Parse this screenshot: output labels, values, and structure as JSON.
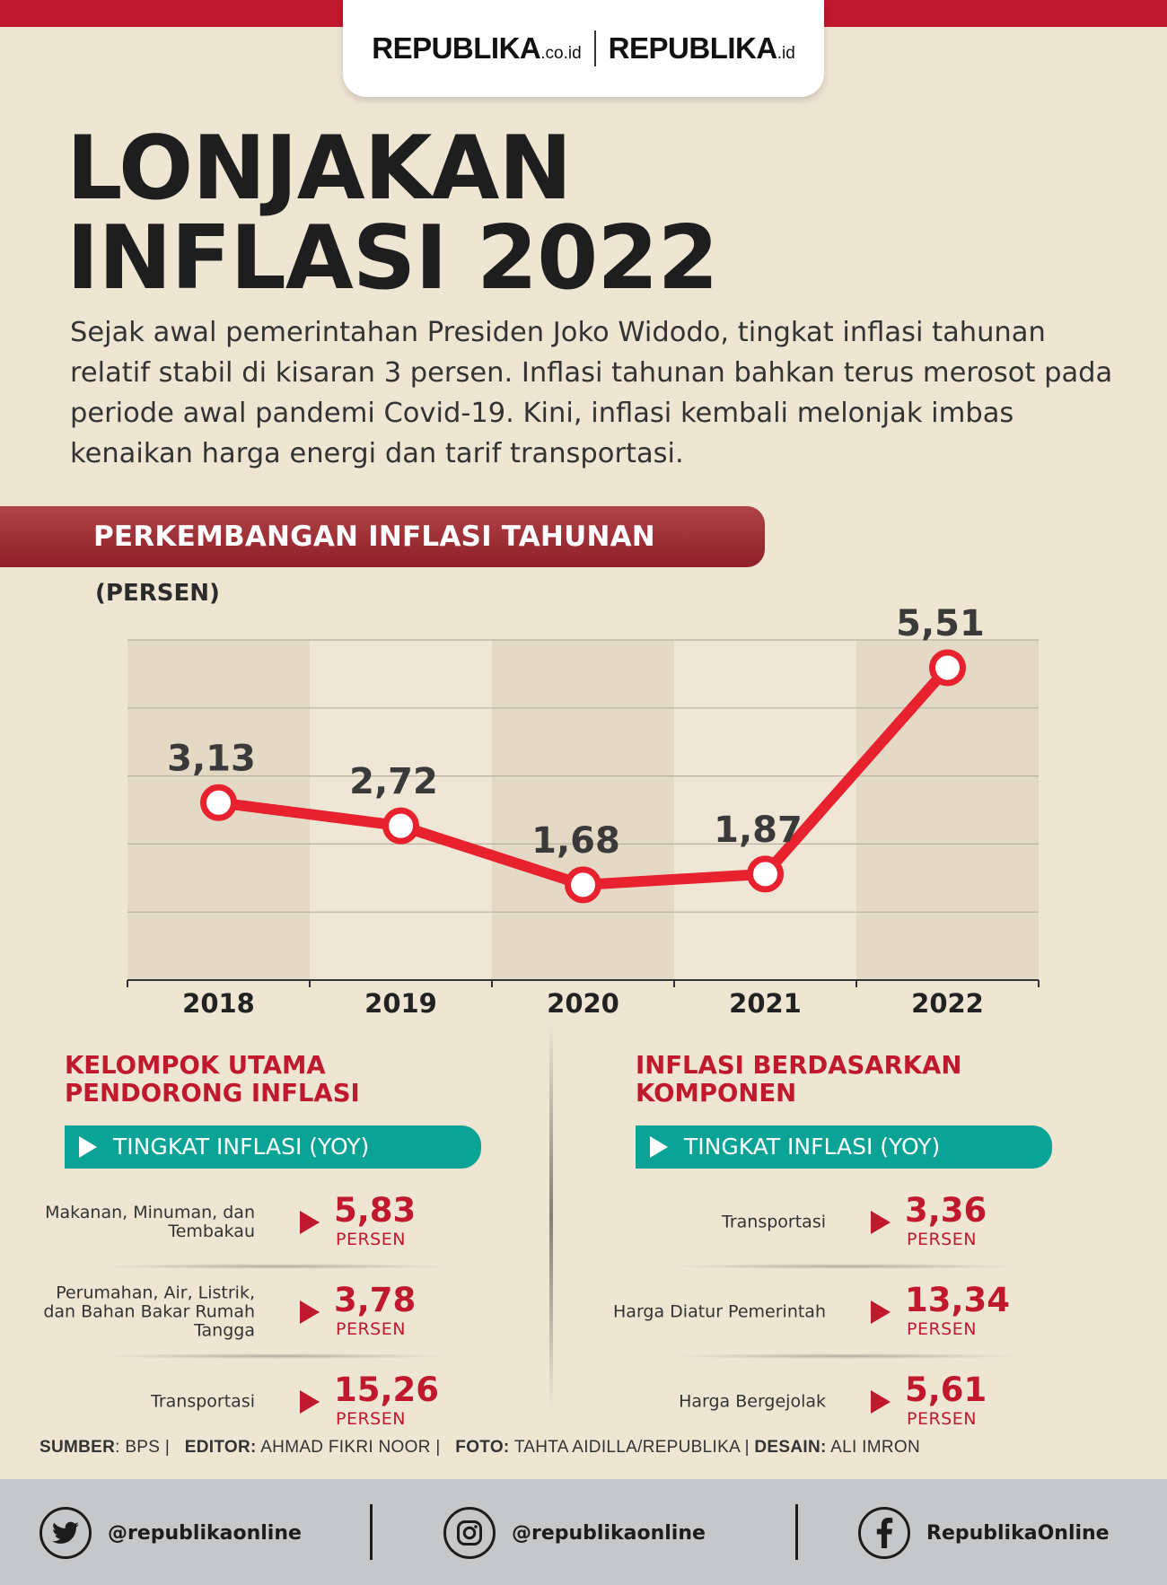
{
  "brand": {
    "logo1": "REPUBLIKA",
    "logo1_suffix": ".co.id",
    "logo2": "REPUBLIKA",
    "logo2_suffix": ".id",
    "accent": "#c0192d",
    "teal": "#0ba396",
    "background": "#efe5d3"
  },
  "title_line1": "LONJAKAN",
  "title_line2": "INFLASI 2022",
  "intro": "Sejak awal pemerintahan Presiden Joko Widodo, tingkat inflasi tahunan relatif stabil di kisaran 3 persen. Inflasi tahunan bahkan terus merosot pada periode awal pandemi Covid-19. Kini, inflasi kembali melonjak imbas kenaikan harga energi dan tarif transportasi.",
  "chart_data": {
    "type": "line",
    "title": "PERKEMBANGAN INFLASI TAHUNAN",
    "ylabel": "(PERSEN)",
    "categories": [
      "2018",
      "2019",
      "2020",
      "2021",
      "2022"
    ],
    "values": [
      3.13,
      2.72,
      1.68,
      1.87,
      5.51
    ],
    "value_labels": [
      "3,13",
      "2,72",
      "1,68",
      "1,87",
      "5,51"
    ],
    "ylim": [
      0,
      6
    ],
    "grid": true,
    "line_color": "#e8212f"
  },
  "left_panel": {
    "heading_line1": "KELOMPOK UTAMA",
    "heading_line2": "PENDORONG INFLASI",
    "pill": "TINGKAT INFLASI (YOY)",
    "rows": [
      {
        "label": "Makanan, Minuman, dan Tembakau",
        "value": "5,83",
        "unit": "PERSEN"
      },
      {
        "label": "Perumahan, Air, Listrik, dan Bahan Bakar Rumah Tangga",
        "value": "3,78",
        "unit": "PERSEN"
      },
      {
        "label": "Transportasi",
        "value": "15,26",
        "unit": "PERSEN"
      }
    ]
  },
  "right_panel": {
    "heading_line1": "INFLASI BERDASARKAN",
    "heading_line2": "KOMPONEN",
    "pill": "TINGKAT INFLASI (YOY)",
    "rows": [
      {
        "label": "Transportasi",
        "value": "3,36",
        "unit": "PERSEN"
      },
      {
        "label": "Harga Diatur Pemerintah",
        "value": "13,34",
        "unit": "PERSEN"
      },
      {
        "label": "Harga Bergejolak",
        "value": "5,61",
        "unit": "PERSEN"
      }
    ]
  },
  "credits": {
    "source_key": "SUMBER",
    "source": "BPS",
    "editor_key": "EDITOR:",
    "editor": "AHMAD FIKRI NOOR",
    "photo_key": "FOTO:",
    "photo": "TAHTA AIDILLA/REPUBLIKA",
    "design_key": "DESAIN:",
    "design": "ALI IMRON"
  },
  "social": {
    "twitter": {
      "icon": "twitter-icon",
      "handle": "@republikaonline"
    },
    "instagram": {
      "icon": "instagram-icon",
      "handle": "@republikaonline"
    },
    "facebook": {
      "icon": "facebook-icon",
      "handle": "RepublikaOnline"
    }
  }
}
